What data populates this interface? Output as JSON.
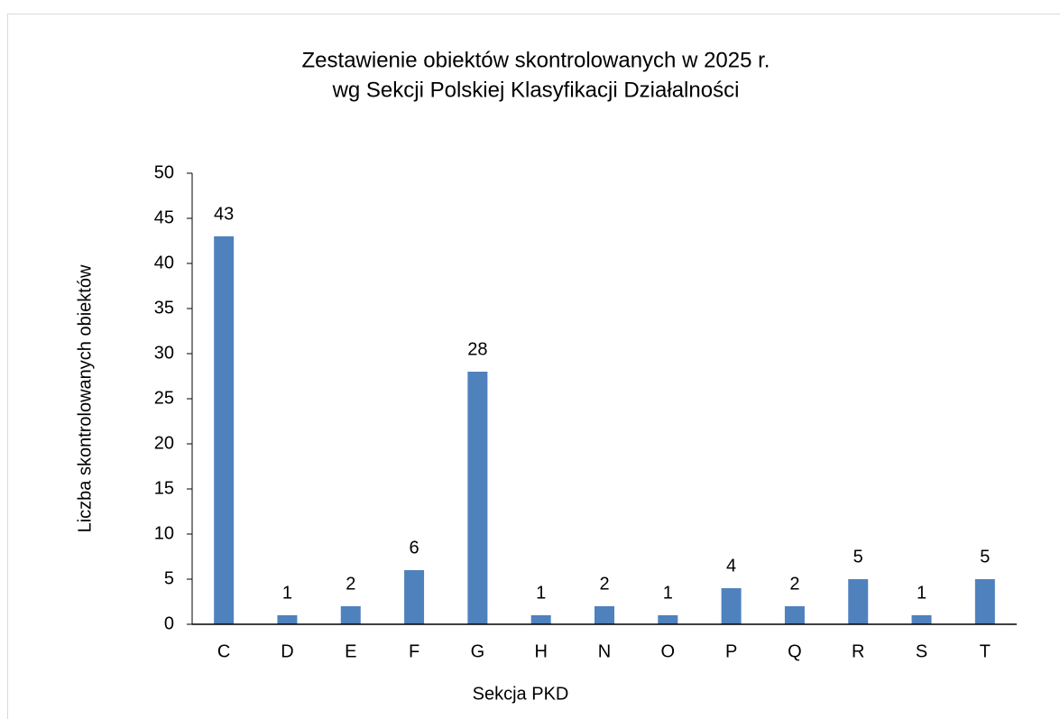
{
  "chart_data": {
    "type": "bar",
    "title": [
      "Zestawienie obiektów skontrolowanych w 2025 r.",
      "wg Sekcji Polskiej Klasyfikacji Działalności"
    ],
    "x_label": "Sekcja PKD",
    "y_label": "Liczba skontrolowanych obiektów",
    "categories": [
      "C",
      "D",
      "E",
      "F",
      "G",
      "H",
      "N",
      "O",
      "P",
      "Q",
      "R",
      "S",
      "T"
    ],
    "values": [
      43,
      1,
      2,
      6,
      28,
      1,
      2,
      1,
      4,
      2,
      5,
      1,
      5
    ],
    "color": "#4f81bd",
    "ylim": [
      0,
      50
    ],
    "yticks": [
      0,
      5,
      10,
      15,
      20,
      25,
      30,
      35,
      40,
      45,
      50
    ],
    "grid": false
  }
}
